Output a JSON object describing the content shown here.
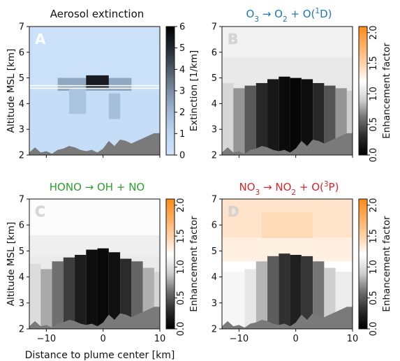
{
  "chart_data": [
    {
      "type": "heatmap",
      "panel_letter": "A",
      "title": "Aerosol extinction",
      "title_color": "#111111",
      "ylabel": "Altitude MSL [km]",
      "xlabel": "",
      "xlim": [
        -13,
        10
      ],
      "ylim": [
        2,
        7
      ],
      "xticks": [
        -10,
        0,
        10
      ],
      "yticks": [
        2,
        3,
        4,
        5,
        6,
        7
      ],
      "show_xtick_labels": false,
      "show_ytick_labels": true,
      "colorbar": {
        "label": "Extinction [1/km]",
        "min": 0,
        "max": 6,
        "ticks": [
          "0",
          "1",
          "2",
          "3",
          "4",
          "5",
          "6"
        ],
        "tick_values": [
          0,
          1,
          2,
          3,
          4,
          5,
          6
        ],
        "colors": [
          "#cfe3fb",
          "#bcd6f2",
          "#9fb9d6",
          "#7b8ea5",
          "#4f5a68",
          "#222831",
          "#000000"
        ]
      },
      "field": {
        "kind": "aerosol",
        "background_value": 0.2,
        "bands": [
          {
            "x_from": -13,
            "x_to": 10,
            "y_from": 2.0,
            "y_to": 4.5,
            "value": 0.45
          },
          {
            "x_from": -8,
            "x_to": 5,
            "y_from": 4.5,
            "y_to": 5.0,
            "value": 2.4
          },
          {
            "x_from": -3,
            "x_to": 1,
            "y_from": 4.6,
            "y_to": 5.1,
            "value": 5.3
          },
          {
            "x_from": -6,
            "x_to": -3,
            "y_from": 3.6,
            "y_to": 4.6,
            "value": 1.6
          },
          {
            "x_from": 1,
            "x_to": 3,
            "y_from": 3.4,
            "y_to": 4.4,
            "value": 1.8
          }
        ]
      },
      "white_lines_km": [
        4.6,
        4.7
      ],
      "terrain": {
        "color": "#7a7a7a",
        "x": [
          -13,
          -12,
          -11,
          -10,
          -9,
          -8,
          -7,
          -6,
          -5,
          -4,
          -3,
          -2,
          -1,
          0,
          1,
          2,
          3,
          4,
          5,
          6,
          7,
          8,
          9,
          10
        ],
        "y": [
          2.1,
          2.3,
          2.1,
          2.15,
          2.05,
          2.2,
          2.25,
          2.35,
          2.3,
          2.2,
          2.15,
          2.2,
          2.1,
          2.25,
          2.55,
          2.35,
          2.6,
          2.55,
          2.45,
          2.55,
          2.65,
          2.75,
          2.85,
          2.85
        ]
      }
    },
    {
      "type": "heatmap",
      "panel_letter": "B",
      "title_parts": [
        {
          "text": "O",
          "sub": false,
          "sup": false
        },
        {
          "text": "3",
          "sub": true,
          "sup": false
        },
        {
          "text": " → O",
          "sub": false,
          "sup": false
        },
        {
          "text": "2",
          "sub": true,
          "sup": false
        },
        {
          "text": " + O(",
          "sub": false,
          "sup": false
        },
        {
          "text": "1",
          "sub": false,
          "sup": true
        },
        {
          "text": "D)",
          "sub": false,
          "sup": false
        }
      ],
      "title_color": "#1f77b4",
      "ylabel": "",
      "xlabel": "",
      "xlim": [
        -13,
        10
      ],
      "ylim": [
        2,
        7
      ],
      "xticks": [
        -10,
        0,
        10
      ],
      "yticks": [
        2,
        3,
        4,
        5,
        6,
        7
      ],
      "show_xtick_labels": false,
      "show_ytick_labels": true,
      "colorbar": {
        "label": "Enhancement factor",
        "min": 0,
        "max": 2.1,
        "ticks": [
          "0.0",
          "0.5",
          "1.0",
          "1.5",
          "2.0"
        ],
        "tick_values": [
          0.0,
          0.5,
          1.0,
          1.5,
          2.0
        ],
        "colors": [
          "#000000",
          "#2b2b2b",
          "#6f6f6f",
          "#cfcfcf",
          "#ffffff",
          "#ffd2a8",
          "#ffad5e",
          "#ff8a1a"
        ]
      },
      "field": {
        "kind": "enhancement",
        "background_value": 1.05,
        "bands": [
          {
            "x_from": -13,
            "x_to": 10,
            "y_from": 5.8,
            "y_to": 7.0,
            "value": 1.12
          },
          {
            "x_from": -13,
            "x_to": 10,
            "y_from": 4.8,
            "y_to": 5.8,
            "value": 1.06
          },
          {
            "x_from": -13,
            "x_to": -11,
            "y_from": 2.0,
            "y_to": 4.8,
            "value": 0.95
          },
          {
            "x_from": -11,
            "x_to": -9,
            "y_from": 2.0,
            "y_to": 4.6,
            "value": 0.72
          },
          {
            "x_from": -9,
            "x_to": -7,
            "y_from": 2.0,
            "y_to": 4.7,
            "value": 0.5
          },
          {
            "x_from": -7,
            "x_to": -5,
            "y_from": 2.0,
            "y_to": 4.8,
            "value": 0.28
          },
          {
            "x_from": -5,
            "x_to": -3,
            "y_from": 2.0,
            "y_to": 4.95,
            "value": 0.16
          },
          {
            "x_from": -3,
            "x_to": -1,
            "y_from": 2.0,
            "y_to": 5.05,
            "value": 0.08
          },
          {
            "x_from": -1,
            "x_to": 1,
            "y_from": 2.0,
            "y_to": 5.0,
            "value": 0.05
          },
          {
            "x_from": 1,
            "x_to": 3,
            "y_from": 2.0,
            "y_to": 4.95,
            "value": 0.1
          },
          {
            "x_from": 3,
            "x_to": 5,
            "y_from": 2.0,
            "y_to": 4.8,
            "value": 0.28
          },
          {
            "x_from": 5,
            "x_to": 7,
            "y_from": 2.0,
            "y_to": 4.7,
            "value": 0.48
          },
          {
            "x_from": 7,
            "x_to": 9,
            "y_from": 2.0,
            "y_to": 4.6,
            "value": 0.72
          },
          {
            "x_from": 9,
            "x_to": 10,
            "y_from": 2.0,
            "y_to": 4.5,
            "value": 0.9
          }
        ]
      },
      "white_lines_km": [],
      "terrain": {
        "color": "#7a7a7a",
        "x": [
          -13,
          -12,
          -11,
          -10,
          -9,
          -8,
          -7,
          -6,
          -5,
          -4,
          -3,
          -2,
          -1,
          0,
          1,
          2,
          3,
          4,
          5,
          6,
          7,
          8,
          9,
          10
        ],
        "y": [
          2.1,
          2.3,
          2.1,
          2.15,
          2.05,
          2.2,
          2.25,
          2.35,
          2.3,
          2.2,
          2.15,
          2.2,
          2.1,
          2.25,
          2.55,
          2.35,
          2.6,
          2.55,
          2.45,
          2.55,
          2.65,
          2.75,
          2.85,
          2.85
        ]
      }
    },
    {
      "type": "heatmap",
      "panel_letter": "C",
      "title_parts": [
        {
          "text": "HONO → OH + NO",
          "sub": false,
          "sup": false
        }
      ],
      "title_color": "#2ca02c",
      "ylabel": "Altitude MSL [km]",
      "xlabel": "",
      "xlim": [
        -13,
        10
      ],
      "ylim": [
        2,
        7
      ],
      "xticks": [
        -10,
        0,
        10
      ],
      "yticks": [
        2,
        3,
        4,
        5,
        6,
        7
      ],
      "show_xtick_labels": true,
      "show_ytick_labels": true,
      "colorbar": {
        "label": "Enhancement factor",
        "min": 0,
        "max": 2.1,
        "ticks": [
          "0.0",
          "0.5",
          "1.0",
          "1.5",
          "2.0"
        ],
        "tick_values": [
          0.0,
          0.5,
          1.0,
          1.5,
          2.0
        ],
        "colors": [
          "#000000",
          "#2b2b2b",
          "#6f6f6f",
          "#cfcfcf",
          "#ffffff",
          "#ffd2a8",
          "#ffad5e",
          "#ff8a1a"
        ]
      },
      "field": {
        "kind": "enhancement",
        "background_value": 1.07,
        "bands": [
          {
            "x_from": -13,
            "x_to": 10,
            "y_from": 5.6,
            "y_to": 7.0,
            "value": 1.18
          },
          {
            "x_from": -13,
            "x_to": 10,
            "y_from": 4.8,
            "y_to": 5.6,
            "value": 1.1
          },
          {
            "x_from": -13,
            "x_to": -11,
            "y_from": 2.0,
            "y_to": 4.5,
            "value": 0.98
          },
          {
            "x_from": -11,
            "x_to": -9,
            "y_from": 2.0,
            "y_to": 4.3,
            "value": 0.78
          },
          {
            "x_from": -9,
            "x_to": -7,
            "y_from": 2.0,
            "y_to": 4.6,
            "value": 0.6
          },
          {
            "x_from": -7,
            "x_to": -5,
            "y_from": 2.0,
            "y_to": 4.75,
            "value": 0.38
          },
          {
            "x_from": -5,
            "x_to": -3,
            "y_from": 2.0,
            "y_to": 4.85,
            "value": 0.2
          },
          {
            "x_from": -3,
            "x_to": -1,
            "y_from": 2.0,
            "y_to": 5.05,
            "value": 0.1
          },
          {
            "x_from": -1,
            "x_to": 1,
            "y_from": 2.0,
            "y_to": 5.1,
            "value": 0.06
          },
          {
            "x_from": 1,
            "x_to": 3,
            "y_from": 2.0,
            "y_to": 4.95,
            "value": 0.12
          },
          {
            "x_from": 3,
            "x_to": 5,
            "y_from": 2.0,
            "y_to": 4.7,
            "value": 0.3
          },
          {
            "x_from": 5,
            "x_to": 7,
            "y_from": 2.0,
            "y_to": 4.6,
            "value": 0.55
          },
          {
            "x_from": 7,
            "x_to": 9,
            "y_from": 2.0,
            "y_to": 4.35,
            "value": 0.8
          },
          {
            "x_from": 9,
            "x_to": 10,
            "y_from": 2.0,
            "y_to": 4.2,
            "value": 0.93
          }
        ]
      },
      "white_lines_km": [],
      "terrain": {
        "color": "#7a7a7a",
        "x": [
          -13,
          -12,
          -11,
          -10,
          -9,
          -8,
          -7,
          -6,
          -5,
          -4,
          -3,
          -2,
          -1,
          0,
          1,
          2,
          3,
          4,
          5,
          6,
          7,
          8,
          9,
          10
        ],
        "y": [
          2.1,
          2.3,
          2.1,
          2.15,
          2.05,
          2.2,
          2.25,
          2.35,
          2.3,
          2.2,
          2.15,
          2.2,
          2.1,
          2.25,
          2.55,
          2.35,
          2.6,
          2.55,
          2.45,
          2.55,
          2.65,
          2.75,
          2.85,
          2.85
        ]
      }
    },
    {
      "type": "heatmap",
      "panel_letter": "D",
      "title_parts": [
        {
          "text": "NO",
          "sub": false,
          "sup": false
        },
        {
          "text": "3",
          "sub": true,
          "sup": false
        },
        {
          "text": " → NO",
          "sub": false,
          "sup": false
        },
        {
          "text": "2",
          "sub": true,
          "sup": false
        },
        {
          "text": " + O(",
          "sub": false,
          "sup": false
        },
        {
          "text": "3",
          "sub": false,
          "sup": true
        },
        {
          "text": "P)",
          "sub": false,
          "sup": false
        }
      ],
      "title_color": "#d62728",
      "ylabel": "",
      "xlabel": "",
      "xlim": [
        -13,
        10
      ],
      "ylim": [
        2,
        7
      ],
      "xticks": [
        -10,
        0,
        10
      ],
      "yticks": [
        2,
        3,
        4,
        5,
        6,
        7
      ],
      "show_xtick_labels": true,
      "show_ytick_labels": true,
      "colorbar": {
        "label": "Enhancement factor",
        "min": 0,
        "max": 2.1,
        "ticks": [
          "0.0",
          "0.5",
          "1.0",
          "1.5",
          "2.0"
        ],
        "tick_values": [
          0.0,
          0.5,
          1.0,
          1.5,
          2.0
        ],
        "colors": [
          "#000000",
          "#2b2b2b",
          "#6f6f6f",
          "#cfcfcf",
          "#ffffff",
          "#ffd2a8",
          "#ffad5e",
          "#ff8a1a"
        ]
      },
      "field": {
        "kind": "enhancement",
        "background_value": 1.2,
        "bands": [
          {
            "x_from": -13,
            "x_to": 10,
            "y_from": 5.5,
            "y_to": 7.0,
            "value": 1.38
          },
          {
            "x_from": -6,
            "x_to": 3,
            "y_from": 5.0,
            "y_to": 6.5,
            "value": 1.45
          },
          {
            "x_from": -13,
            "x_to": 10,
            "y_from": 4.6,
            "y_to": 5.5,
            "value": 1.3
          },
          {
            "x_from": -13,
            "x_to": -9,
            "y_from": 2.0,
            "y_to": 4.2,
            "value": 1.15
          },
          {
            "x_from": -9,
            "x_to": -7,
            "y_from": 2.0,
            "y_to": 4.3,
            "value": 1.05
          },
          {
            "x_from": -7,
            "x_to": -5,
            "y_from": 2.0,
            "y_to": 4.6,
            "value": 0.82
          },
          {
            "x_from": -5,
            "x_to": -3,
            "y_from": 2.0,
            "y_to": 4.8,
            "value": 0.52
          },
          {
            "x_from": -3,
            "x_to": -1,
            "y_from": 2.0,
            "y_to": 4.9,
            "value": 0.32
          },
          {
            "x_from": -1,
            "x_to": 1,
            "y_from": 2.0,
            "y_to": 4.85,
            "value": 0.22
          },
          {
            "x_from": 1,
            "x_to": 3,
            "y_from": 2.0,
            "y_to": 4.8,
            "value": 0.35
          },
          {
            "x_from": 3,
            "x_to": 5,
            "y_from": 2.0,
            "y_to": 4.6,
            "value": 0.62
          },
          {
            "x_from": 5,
            "x_to": 7,
            "y_from": 2.0,
            "y_to": 4.35,
            "value": 0.9
          },
          {
            "x_from": 7,
            "x_to": 10,
            "y_from": 2.0,
            "y_to": 4.2,
            "value": 1.08
          }
        ]
      },
      "white_lines_km": [],
      "terrain": {
        "color": "#7a7a7a",
        "x": [
          -13,
          -12,
          -11,
          -10,
          -9,
          -8,
          -7,
          -6,
          -5,
          -4,
          -3,
          -2,
          -1,
          0,
          1,
          2,
          3,
          4,
          5,
          6,
          7,
          8,
          9,
          10
        ],
        "y": [
          2.1,
          2.3,
          2.1,
          2.15,
          2.05,
          2.2,
          2.25,
          2.35,
          2.3,
          2.2,
          2.15,
          2.2,
          2.1,
          2.25,
          2.55,
          2.35,
          2.6,
          2.55,
          2.45,
          2.55,
          2.65,
          2.75,
          2.85,
          2.85
        ]
      }
    }
  ],
  "figure": {
    "shared_xlabel": "Distance to plume center [km]"
  }
}
